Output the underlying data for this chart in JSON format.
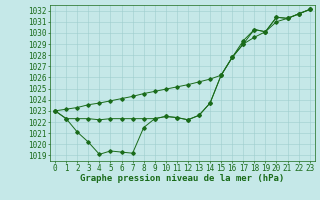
{
  "xlabel": "Graphe pression niveau de la mer (hPa)",
  "ylim": [
    1018.5,
    1032.5
  ],
  "xlim": [
    -0.5,
    23.5
  ],
  "yticks": [
    1019,
    1020,
    1021,
    1022,
    1023,
    1024,
    1025,
    1026,
    1027,
    1028,
    1029,
    1030,
    1031,
    1032
  ],
  "xticks": [
    0,
    1,
    2,
    3,
    4,
    5,
    6,
    7,
    8,
    9,
    10,
    11,
    12,
    13,
    14,
    15,
    16,
    17,
    18,
    19,
    20,
    21,
    22,
    23
  ],
  "bg_color": "#c5e8e8",
  "grid_color": "#9ecece",
  "line_color": "#1a6b1a",
  "s1": [
    1023.0,
    1022.3,
    1021.1,
    1020.2,
    1019.1,
    1019.4,
    1019.3,
    1019.2,
    1021.5,
    1022.3,
    1022.5,
    1022.4,
    1022.2,
    1022.6,
    1023.7,
    1026.2,
    1027.8,
    1029.0,
    1030.3,
    1030.1,
    1031.4,
    1031.3,
    1031.7,
    1032.1
  ],
  "s2": [
    1023.0,
    1022.3,
    1022.3,
    1022.3,
    1022.2,
    1022.3,
    1022.3,
    1022.3,
    1022.3,
    1022.3,
    1022.5,
    1022.4,
    1022.2,
    1022.6,
    1023.7,
    1026.2,
    1027.8,
    1029.3,
    1030.3,
    1030.1,
    1031.4,
    1031.3,
    1031.7,
    1032.1
  ],
  "s3": [
    1023.0,
    1023.15,
    1023.3,
    1023.55,
    1023.7,
    1023.9,
    1024.1,
    1024.3,
    1024.55,
    1024.75,
    1024.95,
    1025.15,
    1025.35,
    1025.6,
    1025.85,
    1026.2,
    1027.8,
    1029.0,
    1029.6,
    1030.1,
    1031.0,
    1031.3,
    1031.7,
    1032.1
  ],
  "font_size_ticks": 5.5,
  "font_size_label": 6.5
}
